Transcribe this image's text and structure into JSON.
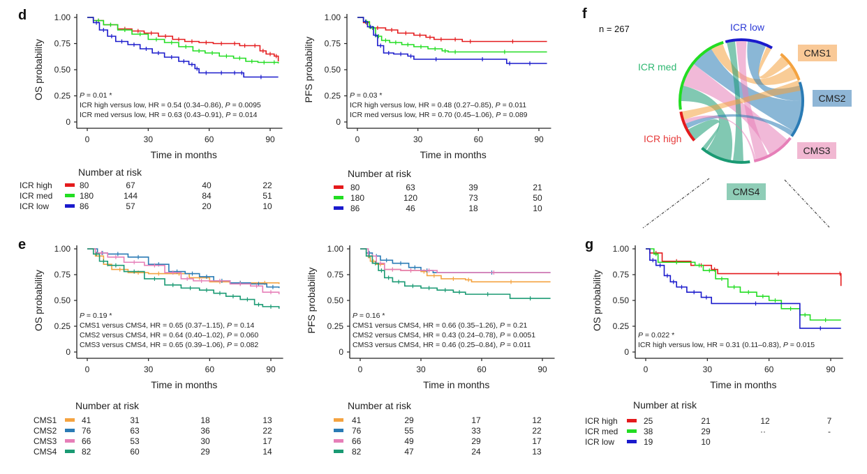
{
  "figure": {
    "panel_letters": [
      "d",
      "e",
      "f",
      "g"
    ],
    "n_label": "n = 267"
  },
  "chart_data": [
    {
      "id": "d-os",
      "panel": "d",
      "type": "line",
      "subtype": "kaplan-meier",
      "xlabel": "Time in months",
      "ylabel": "OS probability",
      "xticks": [
        0,
        30,
        60,
        90
      ],
      "yticks": [
        "0",
        "0.25",
        "0.50",
        "0.75",
        "1.00"
      ],
      "xlim": [
        0,
        95
      ],
      "ylim": [
        0,
        1
      ],
      "annotations": [
        "P = 0.01 *",
        "ICR high versus low, HR = 0.54 (0.34–0.86), P = 0.0095",
        "ICR med versus low,  HR = 0.63 (0.43–0.91), P = 0.014"
      ],
      "series": [
        {
          "name": "ICR high",
          "color": "#e41a1c",
          "x": [
            0,
            3,
            8,
            15,
            22,
            28,
            35,
            42,
            48,
            55,
            62,
            70,
            75,
            80,
            85,
            88,
            92,
            94
          ],
          "y": [
            1,
            0.97,
            0.93,
            0.89,
            0.87,
            0.85,
            0.82,
            0.79,
            0.77,
            0.76,
            0.75,
            0.75,
            0.73,
            0.73,
            0.68,
            0.65,
            0.63,
            0.58
          ]
        },
        {
          "name": "ICR med",
          "color": "#22dd22",
          "x": [
            0,
            3,
            8,
            15,
            22,
            30,
            38,
            45,
            52,
            58,
            65,
            72,
            78,
            84,
            90,
            94
          ],
          "y": [
            1,
            0.97,
            0.93,
            0.88,
            0.84,
            0.79,
            0.76,
            0.72,
            0.68,
            0.66,
            0.63,
            0.61,
            0.58,
            0.57,
            0.57,
            0.56
          ]
        },
        {
          "name": "ICR low",
          "color": "#1a1acc",
          "x": [
            0,
            3,
            6,
            10,
            14,
            20,
            26,
            32,
            38,
            45,
            50,
            53,
            55,
            62,
            70,
            75,
            77,
            94
          ],
          "y": [
            1,
            0.95,
            0.88,
            0.82,
            0.77,
            0.74,
            0.7,
            0.66,
            0.62,
            0.58,
            0.55,
            0.51,
            0.47,
            0.47,
            0.47,
            0.47,
            0.43,
            0.43
          ]
        }
      ],
      "risk_table": {
        "title": "Number at risk",
        "rows": [
          {
            "label": "ICR high",
            "color": "#e41a1c",
            "values": [
              80,
              67,
              40,
              22
            ]
          },
          {
            "label": "ICR med",
            "color": "#22dd22",
            "values": [
              180,
              144,
              84,
              51
            ]
          },
          {
            "label": "ICR low",
            "color": "#1a1acc",
            "values": [
              86,
              57,
              20,
              10
            ]
          }
        ]
      }
    },
    {
      "id": "d-pfs",
      "panel": "d",
      "type": "line",
      "subtype": "kaplan-meier",
      "xlabel": "Time in months",
      "ylabel": "PFS probability",
      "xticks": [
        0,
        30,
        60,
        90
      ],
      "yticks": [
        "0",
        "0.25",
        "0.50",
        "0.75",
        "1.00"
      ],
      "xlim": [
        0,
        95
      ],
      "ylim": [
        0,
        1
      ],
      "annotations": [
        "P = 0.03 *",
        "ICR high versus low, HR = 0.48 (0.27–0.85), P = 0.011",
        "ICR med versus low,  HR = 0.70 (0.45–1.06), P = 0.089"
      ],
      "series": [
        {
          "name": "ICR high",
          "color": "#e41a1c",
          "x": [
            0,
            3,
            6,
            14,
            20,
            28,
            34,
            38,
            45,
            52,
            60,
            94
          ],
          "y": [
            1,
            0.95,
            0.9,
            0.88,
            0.85,
            0.83,
            0.81,
            0.79,
            0.79,
            0.77,
            0.77,
            0.77
          ]
        },
        {
          "name": "ICR med",
          "color": "#22dd22",
          "x": [
            0,
            3,
            6,
            9,
            12,
            16,
            22,
            28,
            35,
            42,
            45,
            52,
            94
          ],
          "y": [
            1,
            0.96,
            0.9,
            0.82,
            0.78,
            0.76,
            0.74,
            0.72,
            0.7,
            0.68,
            0.67,
            0.67,
            0.67
          ]
        },
        {
          "name": "ICR low",
          "color": "#1a1acc",
          "x": [
            0,
            3,
            5,
            8,
            10,
            13,
            18,
            25,
            28,
            50,
            74,
            77,
            94
          ],
          "y": [
            1,
            0.96,
            0.91,
            0.83,
            0.73,
            0.66,
            0.65,
            0.63,
            0.6,
            0.6,
            0.56,
            0.56,
            0.56
          ]
        }
      ],
      "risk_table": {
        "title": "Number at risk",
        "rows": [
          {
            "label": "",
            "color": "#e41a1c",
            "values": [
              80,
              63,
              39,
              21
            ]
          },
          {
            "label": "",
            "color": "#22dd22",
            "values": [
              180,
              120,
              73,
              50
            ]
          },
          {
            "label": "",
            "color": "#1a1acc",
            "values": [
              86,
              46,
              18,
              10
            ]
          }
        ]
      }
    },
    {
      "id": "e-os",
      "panel": "e",
      "type": "line",
      "subtype": "kaplan-meier",
      "xlabel": "Time in months",
      "ylabel": "OS probability",
      "xticks": [
        0,
        30,
        60,
        90
      ],
      "yticks": [
        "0",
        "0.25",
        "0.50",
        "0.75",
        "1.00"
      ],
      "xlim": [
        0,
        95
      ],
      "ylim": [
        0,
        1
      ],
      "annotations": [
        "P = 0.19 *",
        "CMS1 versus CMS4, HR = 0.65 (0.37–1.15), P = 0.14",
        "CMS2 versus CMS4, HR = 0.64 (0.40–1.02), P = 0.060",
        "CMS3 versus CMS4, HR = 0.65 (0.39–1.06), P = 0.082"
      ],
      "series": [
        {
          "name": "CMS1",
          "color": "#f4a340",
          "x": [
            0,
            4,
            8,
            12,
            20,
            30,
            40,
            50,
            60,
            70,
            80,
            94
          ],
          "y": [
            1,
            0.93,
            0.85,
            0.8,
            0.77,
            0.76,
            0.76,
            0.72,
            0.68,
            0.67,
            0.67,
            0.66
          ]
        },
        {
          "name": "CMS2",
          "color": "#2a7bb5",
          "x": [
            0,
            5,
            10,
            20,
            30,
            40,
            48,
            55,
            62,
            70,
            80,
            88,
            94
          ],
          "y": [
            1,
            0.96,
            0.95,
            0.92,
            0.85,
            0.78,
            0.76,
            0.73,
            0.69,
            0.67,
            0.66,
            0.63,
            0.62
          ]
        },
        {
          "name": "CMS3",
          "color": "#e67fb8",
          "x": [
            0,
            4,
            10,
            18,
            28,
            38,
            46,
            52,
            60,
            70,
            80,
            86,
            94
          ],
          "y": [
            1,
            0.96,
            0.92,
            0.87,
            0.84,
            0.77,
            0.71,
            0.69,
            0.69,
            0.66,
            0.64,
            0.58,
            0.56
          ]
        },
        {
          "name": "CMS4",
          "color": "#1a9a73",
          "x": [
            0,
            3,
            6,
            10,
            18,
            28,
            38,
            46,
            55,
            62,
            68,
            75,
            82,
            86,
            94
          ],
          "y": [
            1,
            0.95,
            0.88,
            0.84,
            0.78,
            0.71,
            0.65,
            0.62,
            0.6,
            0.57,
            0.54,
            0.51,
            0.46,
            0.44,
            0.42
          ]
        }
      ],
      "risk_table": {
        "title": "Number at risk",
        "rows": [
          {
            "label": "CMS1",
            "color": "#f4a340",
            "values": [
              41,
              31,
              18,
              13
            ]
          },
          {
            "label": "CMS2",
            "color": "#2a7bb5",
            "values": [
              76,
              63,
              36,
              22
            ]
          },
          {
            "label": "CMS3",
            "color": "#e67fb8",
            "values": [
              66,
              53,
              30,
              17
            ]
          },
          {
            "label": "CMS4",
            "color": "#1a9a73",
            "values": [
              82,
              60,
              29,
              14
            ]
          }
        ]
      }
    },
    {
      "id": "e-pfs",
      "panel": "e",
      "type": "line",
      "subtype": "kaplan-meier",
      "xlabel": "Time in months",
      "ylabel": "PFS probability",
      "xticks": [
        0,
        30,
        60,
        90
      ],
      "yticks": [
        "0",
        "0.25",
        "0.50",
        "0.75",
        "1.00"
      ],
      "xlim": [
        0,
        95
      ],
      "ylim": [
        0,
        1
      ],
      "annotations": [
        "P = 0.16 *",
        "CMS1 versus CMS4, HR = 0.66 (0.35–1.26), P = 0.21",
        "CMS2 versus CMS4, HR = 0.43 (0.24–0.78), P = 0.0051",
        "CMS3 versus CMS4, HR = 0.46 (0.25–0.84), P = 0.011"
      ],
      "series": [
        {
          "name": "CMS1",
          "color": "#f4a340",
          "x": [
            0,
            3,
            5,
            8,
            12,
            20,
            30,
            33,
            40,
            52,
            55,
            94
          ],
          "y": [
            1,
            0.93,
            0.88,
            0.85,
            0.8,
            0.79,
            0.78,
            0.74,
            0.71,
            0.7,
            0.68,
            0.68
          ]
        },
        {
          "name": "CMS2",
          "color": "#2a7bb5",
          "x": [
            0,
            3,
            6,
            10,
            16,
            24,
            30,
            36,
            94
          ],
          "y": [
            1,
            0.96,
            0.93,
            0.89,
            0.86,
            0.82,
            0.79,
            0.77,
            0.77
          ]
        },
        {
          "name": "CMS3",
          "color": "#e67fb8",
          "x": [
            0,
            4,
            8,
            12,
            20,
            30,
            38,
            94
          ],
          "y": [
            1,
            0.93,
            0.86,
            0.8,
            0.79,
            0.79,
            0.77,
            0.77
          ]
        },
        {
          "name": "CMS4",
          "color": "#1a9a73",
          "x": [
            0,
            3,
            6,
            9,
            12,
            16,
            22,
            30,
            38,
            46,
            52,
            74,
            94
          ],
          "y": [
            1,
            0.93,
            0.86,
            0.79,
            0.72,
            0.68,
            0.64,
            0.62,
            0.6,
            0.58,
            0.56,
            0.52,
            0.52
          ]
        }
      ],
      "risk_table": {
        "title": "Number at risk",
        "rows": [
          {
            "label": "",
            "color": "#f4a340",
            "values": [
              41,
              29,
              17,
              12
            ]
          },
          {
            "label": "",
            "color": "#2a7bb5",
            "values": [
              76,
              55,
              33,
              22
            ]
          },
          {
            "label": "",
            "color": "#e67fb8",
            "values": [
              66,
              49,
              29,
              17
            ]
          },
          {
            "label": "",
            "color": "#1a9a73",
            "values": [
              82,
              47,
              24,
              13
            ]
          }
        ]
      }
    },
    {
      "id": "f-chord",
      "panel": "f",
      "type": "chord",
      "n": 267,
      "groups_left": [
        {
          "name": "ICR low",
          "color": "#1a1acc"
        },
        {
          "name": "ICR med",
          "color": "#22dd22"
        },
        {
          "name": "ICR high",
          "color": "#e41a1c"
        }
      ],
      "groups_right": [
        {
          "name": "CMS1",
          "color": "#f4a340",
          "box": "#f9c997"
        },
        {
          "name": "CMS2",
          "color": "#2a7bb5",
          "box": "#8fb6d6"
        },
        {
          "name": "CMS3",
          "color": "#e67fb8",
          "box": "#f1b8d2"
        },
        {
          "name": "CMS4",
          "color": "#1a9a73",
          "box": "#8fcdb7"
        }
      ]
    },
    {
      "id": "g-os",
      "panel": "g",
      "type": "line",
      "subtype": "kaplan-meier",
      "xlabel": "Time in months",
      "ylabel": "OS probability",
      "xticks": [
        0,
        30,
        60,
        90
      ],
      "yticks": [
        "0",
        "0.25",
        "0.50",
        "0.75",
        "1.00"
      ],
      "xlim": [
        0,
        95
      ],
      "ylim": [
        0,
        1
      ],
      "annotations": [
        "P = 0.022 *",
        "ICR high versus low, HR = 0.31 (0.11–0.83), P = 0.015"
      ],
      "series": [
        {
          "name": "ICR high",
          "color": "#e41a1c",
          "x": [
            0,
            2,
            8,
            22,
            32,
            35,
            94,
            95
          ],
          "y": [
            1,
            0.96,
            0.88,
            0.84,
            0.8,
            0.76,
            0.76,
            0.64
          ]
        },
        {
          "name": "ICR med",
          "color": "#22dd22",
          "x": [
            0,
            4,
            6,
            24,
            28,
            34,
            40,
            46,
            54,
            60,
            66,
            75,
            80,
            95
          ],
          "y": [
            1,
            0.95,
            0.87,
            0.84,
            0.79,
            0.71,
            0.63,
            0.58,
            0.54,
            0.5,
            0.42,
            0.36,
            0.31,
            0.31
          ]
        },
        {
          "name": "ICR low",
          "color": "#1a1acc",
          "x": [
            0,
            2,
            5,
            9,
            12,
            15,
            20,
            27,
            32,
            75,
            95
          ],
          "y": [
            1,
            0.89,
            0.84,
            0.74,
            0.68,
            0.63,
            0.58,
            0.53,
            0.47,
            0.23,
            0.23
          ]
        }
      ],
      "risk_table": {
        "title": "Number at risk",
        "rows": [
          {
            "label": "ICR high",
            "color": "#e41a1c",
            "values": [
              "25",
              "21",
              "12",
              "7"
            ]
          },
          {
            "label": "ICR med",
            "color": "#22dd22",
            "values": [
              "38",
              "29",
              "",
              ""
            ]
          },
          {
            "label": "ICR low",
            "color": "#1a1acc",
            "values": [
              "19",
              "10",
              "",
              ""
            ]
          }
        ]
      }
    }
  ]
}
